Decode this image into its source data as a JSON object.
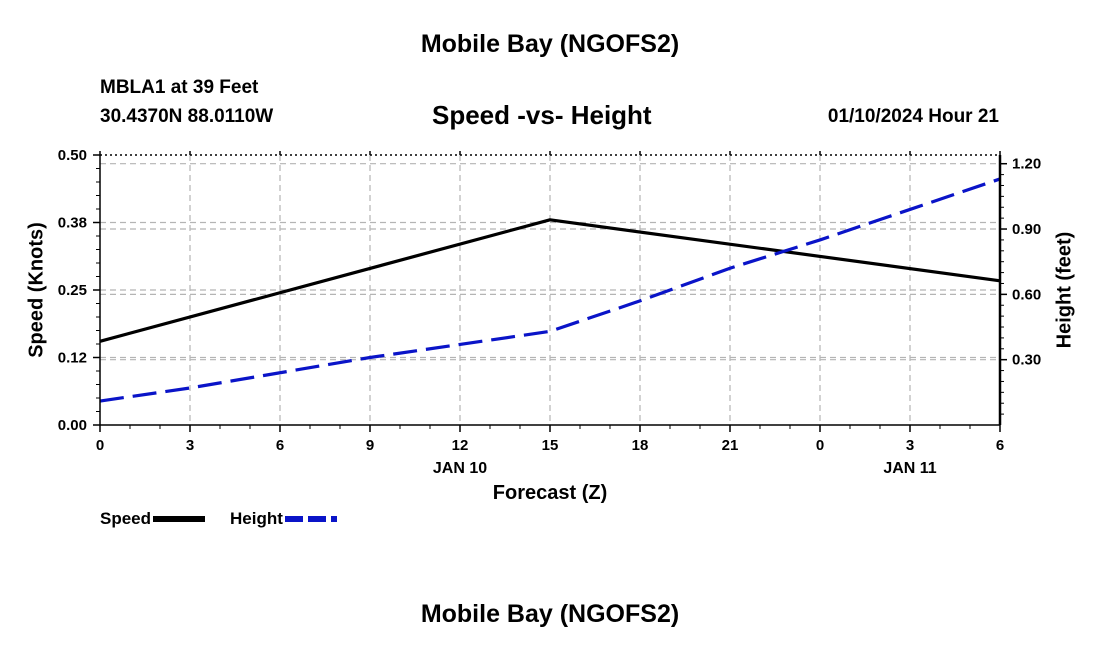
{
  "header": {
    "title": "Mobile Bay (NGOFS2)",
    "station": "MBLA1 at 39 Feet",
    "coords": "30.4370N  88.0110W",
    "chart_title": "Speed -vs- Height",
    "datetime": "01/10/2024 Hour 21",
    "footer_title": "Mobile Bay (NGOFS2)"
  },
  "legend": {
    "speed_label": "Speed",
    "height_label": "Height"
  },
  "colors": {
    "speed": "#000000",
    "height": "#0a14c8",
    "grid": "#b4b4b4"
  },
  "chart_data": {
    "type": "line",
    "title": "Speed -vs- Height",
    "xlabel": "Forecast (Z)",
    "ylabel": "Speed (Knots)",
    "y2label": "Height (feet)",
    "x": [
      0,
      3,
      6,
      9,
      12,
      15,
      18,
      21,
      24,
      27,
      30
    ],
    "x_tick_labels": [
      "0",
      "3",
      "6",
      "9",
      "12",
      "15",
      "18",
      "21",
      "0",
      "3",
      "6"
    ],
    "date_labels": [
      {
        "x": 12,
        "label": "JAN 10"
      },
      {
        "x": 27,
        "label": "JAN 11"
      }
    ],
    "xlim": [
      0,
      30
    ],
    "ylim": [
      0,
      0.5
    ],
    "y_ticks": [
      0.0,
      0.125,
      0.25,
      0.375,
      0.5
    ],
    "y_tick_labels": [
      "0.00",
      "0.12",
      "0.25",
      "0.38",
      "0.50"
    ],
    "y2lim": [
      0.0,
      1.24
    ],
    "y2_ticks": [
      0.3,
      0.6,
      0.9,
      1.2
    ],
    "y2_tick_labels": [
      "0.30",
      "0.60",
      "0.90",
      "1.20"
    ],
    "grid": true,
    "series": [
      {
        "name": "Speed",
        "axis": "left",
        "style": "solid",
        "x": [
          0,
          15,
          30
        ],
        "values": [
          0.155,
          0.38,
          0.267
        ]
      },
      {
        "name": "Height",
        "axis": "right",
        "style": "dashed",
        "x": [
          0,
          3,
          6,
          9,
          12,
          15,
          18,
          21,
          24,
          27,
          30
        ],
        "values": [
          0.11,
          0.17,
          0.24,
          0.31,
          0.37,
          0.43,
          0.57,
          0.72,
          0.85,
          0.99,
          1.13
        ]
      }
    ]
  }
}
